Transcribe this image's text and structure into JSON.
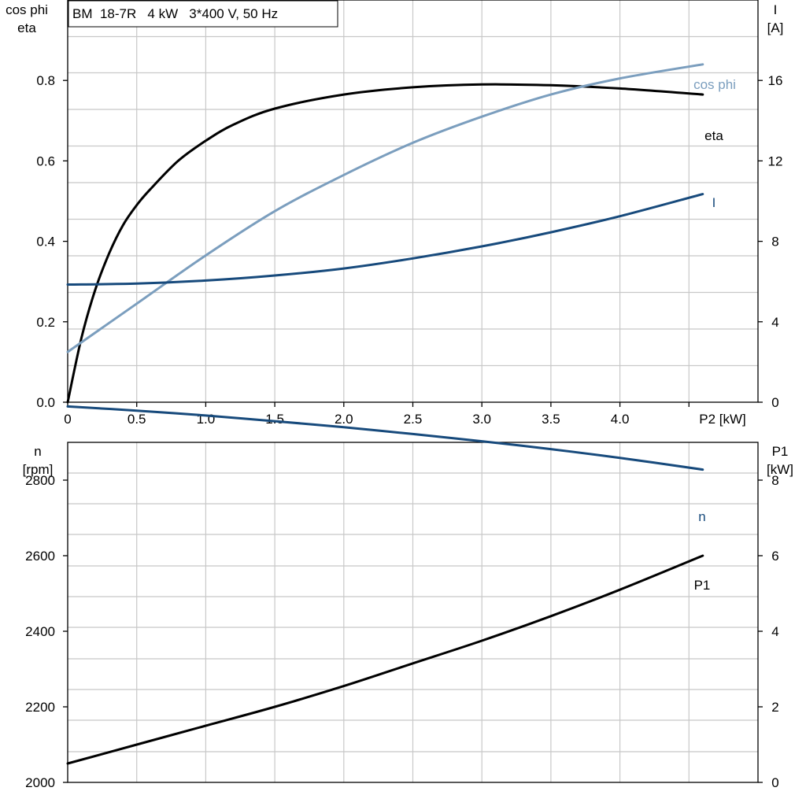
{
  "chart_data": [
    {
      "type": "line",
      "title": "BM  18-7R   4 kW   3*400 V, 50 Hz",
      "xlabel": "P2 [kW]",
      "x_ticks": [
        "0",
        "0.5",
        "1.0",
        "1.5",
        "2.0",
        "2.5",
        "3.0",
        "3.5",
        "4.0"
      ],
      "xlim": [
        0,
        5.0
      ],
      "ylabel_left": [
        "cos phi",
        "eta"
      ],
      "y_ticks_left": [
        "0.0",
        "0.2",
        "0.4",
        "0.6",
        "0.8"
      ],
      "ylim_left": [
        0,
        1.0
      ],
      "ylabel_right": [
        "I",
        "[A]"
      ],
      "y_ticks_right": [
        "0",
        "4",
        "8",
        "12",
        "16"
      ],
      "ylim_right": [
        0,
        20
      ],
      "grid": true,
      "series": [
        {
          "name": "eta",
          "axis": "left",
          "color": "#000000",
          "x": [
            0,
            0.1,
            0.2,
            0.3,
            0.4,
            0.5,
            0.6,
            0.8,
            1.0,
            1.2,
            1.5,
            2.0,
            2.5,
            3.0,
            3.5,
            4.0,
            4.6
          ],
          "y": [
            0,
            0.16,
            0.28,
            0.37,
            0.44,
            0.49,
            0.53,
            0.6,
            0.65,
            0.69,
            0.73,
            0.765,
            0.783,
            0.79,
            0.788,
            0.78,
            0.765
          ]
        },
        {
          "name": "cos phi",
          "axis": "left",
          "color": "#7b9ebe",
          "x": [
            0,
            0.5,
            1.0,
            1.5,
            2.0,
            2.5,
            3.0,
            3.5,
            4.0,
            4.6
          ],
          "y": [
            0.125,
            0.245,
            0.365,
            0.475,
            0.565,
            0.645,
            0.71,
            0.765,
            0.805,
            0.84
          ]
        },
        {
          "name": "I",
          "axis": "right",
          "color": "#174a7c",
          "x": [
            0,
            0.5,
            1.0,
            1.5,
            2.0,
            2.5,
            3.0,
            3.5,
            4.0,
            4.6
          ],
          "y": [
            5.85,
            5.9,
            6.05,
            6.3,
            6.65,
            7.15,
            7.75,
            8.45,
            9.25,
            10.35
          ]
        }
      ]
    },
    {
      "type": "line",
      "ylabel_left": [
        "n",
        "[rpm]"
      ],
      "y_ticks_left": [
        "2000",
        "2200",
        "2400",
        "2600",
        "2800"
      ],
      "ylim_left": [
        2000,
        2900
      ],
      "ylabel_right": [
        "P1",
        "[kW]"
      ],
      "y_ticks_right": [
        "0",
        "2",
        "4",
        "6",
        "8"
      ],
      "ylim_right": [
        0,
        9
      ],
      "xlim": [
        0,
        5.0
      ],
      "grid": true,
      "series": [
        {
          "name": "n",
          "axis": "left",
          "color": "#174a7c",
          "x": [
            0,
            0.5,
            1.0,
            1.5,
            2.0,
            2.5,
            3.0,
            3.5,
            4.0,
            4.6
          ],
          "y": [
            2995,
            2984,
            2971,
            2956,
            2940,
            2922,
            2903,
            2882,
            2859,
            2828
          ]
        },
        {
          "name": "P1",
          "axis": "right",
          "color": "#000000",
          "x": [
            0,
            0.5,
            1.0,
            1.5,
            2.0,
            2.5,
            3.0,
            3.5,
            4.0,
            4.6
          ],
          "y": [
            0.5,
            1.0,
            1.5,
            2.0,
            2.55,
            3.15,
            3.75,
            4.4,
            5.1,
            6.0
          ]
        }
      ]
    }
  ]
}
